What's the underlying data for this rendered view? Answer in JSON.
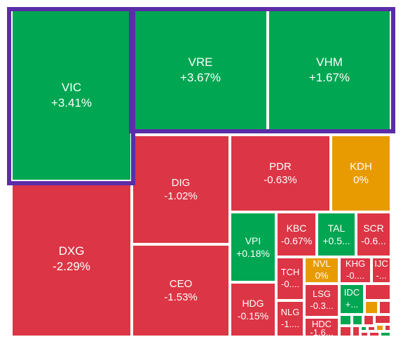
{
  "colors": {
    "up": "#00a651",
    "down": "#dc3545",
    "flat": "#e89b00",
    "frame": "#5b2da8"
  },
  "tiles": [
    {
      "id": "vic",
      "symbol": "VIC",
      "change": "+3.41%",
      "dir": "up"
    },
    {
      "id": "vre",
      "symbol": "VRE",
      "change": "+3.67%",
      "dir": "up"
    },
    {
      "id": "vhm",
      "symbol": "VHM",
      "change": "+1.67%",
      "dir": "up"
    },
    {
      "id": "dxg",
      "symbol": "DXG",
      "change": "-2.29%",
      "dir": "down"
    },
    {
      "id": "dig",
      "symbol": "DIG",
      "change": "-1.02%",
      "dir": "down"
    },
    {
      "id": "ceo",
      "symbol": "CEO",
      "change": "-1.53%",
      "dir": "down"
    },
    {
      "id": "pdr",
      "symbol": "PDR",
      "change": "-0.63%",
      "dir": "down"
    },
    {
      "id": "kdh",
      "symbol": "KDH",
      "change": "0%",
      "dir": "flat"
    },
    {
      "id": "vpi",
      "symbol": "VPI",
      "change": "+0.18%",
      "dir": "up"
    },
    {
      "id": "hdg",
      "symbol": "HDG",
      "change": "-0.15%",
      "dir": "down"
    },
    {
      "id": "kbc",
      "symbol": "KBC",
      "change": "-0.67%",
      "dir": "down"
    },
    {
      "id": "tal",
      "symbol": "TAL",
      "change": "+0.5...",
      "dir": "up"
    },
    {
      "id": "scr",
      "symbol": "SCR",
      "change": "-0.6...",
      "dir": "down"
    },
    {
      "id": "tch",
      "symbol": "TCH",
      "change": "-0....",
      "dir": "down"
    },
    {
      "id": "nvl",
      "symbol": "NVL",
      "change": "0%",
      "dir": "flat"
    },
    {
      "id": "khg",
      "symbol": "KHG",
      "change": "-0....",
      "dir": "down"
    },
    {
      "id": "ijc",
      "symbol": "IJC",
      "change": "-...",
      "dir": "down"
    },
    {
      "id": "nlg",
      "symbol": "NLG",
      "change": "-1....",
      "dir": "down"
    },
    {
      "id": "lsg",
      "symbol": "LSG",
      "change": "-0.3...",
      "dir": "down"
    },
    {
      "id": "idc",
      "symbol": "IDC",
      "change": "+...",
      "dir": "up"
    },
    {
      "id": "hdc",
      "symbol": "HDC",
      "change": "-1.6...",
      "dir": "down"
    },
    {
      "id": "t1",
      "dir": "down"
    },
    {
      "id": "t2",
      "dir": "up"
    },
    {
      "id": "t3",
      "dir": "up"
    },
    {
      "id": "t4",
      "dir": "down"
    },
    {
      "id": "t5",
      "dir": "down"
    },
    {
      "id": "t6",
      "dir": "down"
    },
    {
      "id": "t7",
      "dir": "flat"
    },
    {
      "id": "t8",
      "dir": "down"
    },
    {
      "id": "t9",
      "dir": "down"
    },
    {
      "id": "t10",
      "dir": "up"
    },
    {
      "id": "t11",
      "dir": "down"
    },
    {
      "id": "t12",
      "dir": "flat"
    },
    {
      "id": "t13",
      "dir": "down"
    },
    {
      "id": "t14",
      "dir": "down"
    },
    {
      "id": "t15",
      "dir": "down"
    },
    {
      "id": "t16",
      "dir": "up"
    }
  ]
}
